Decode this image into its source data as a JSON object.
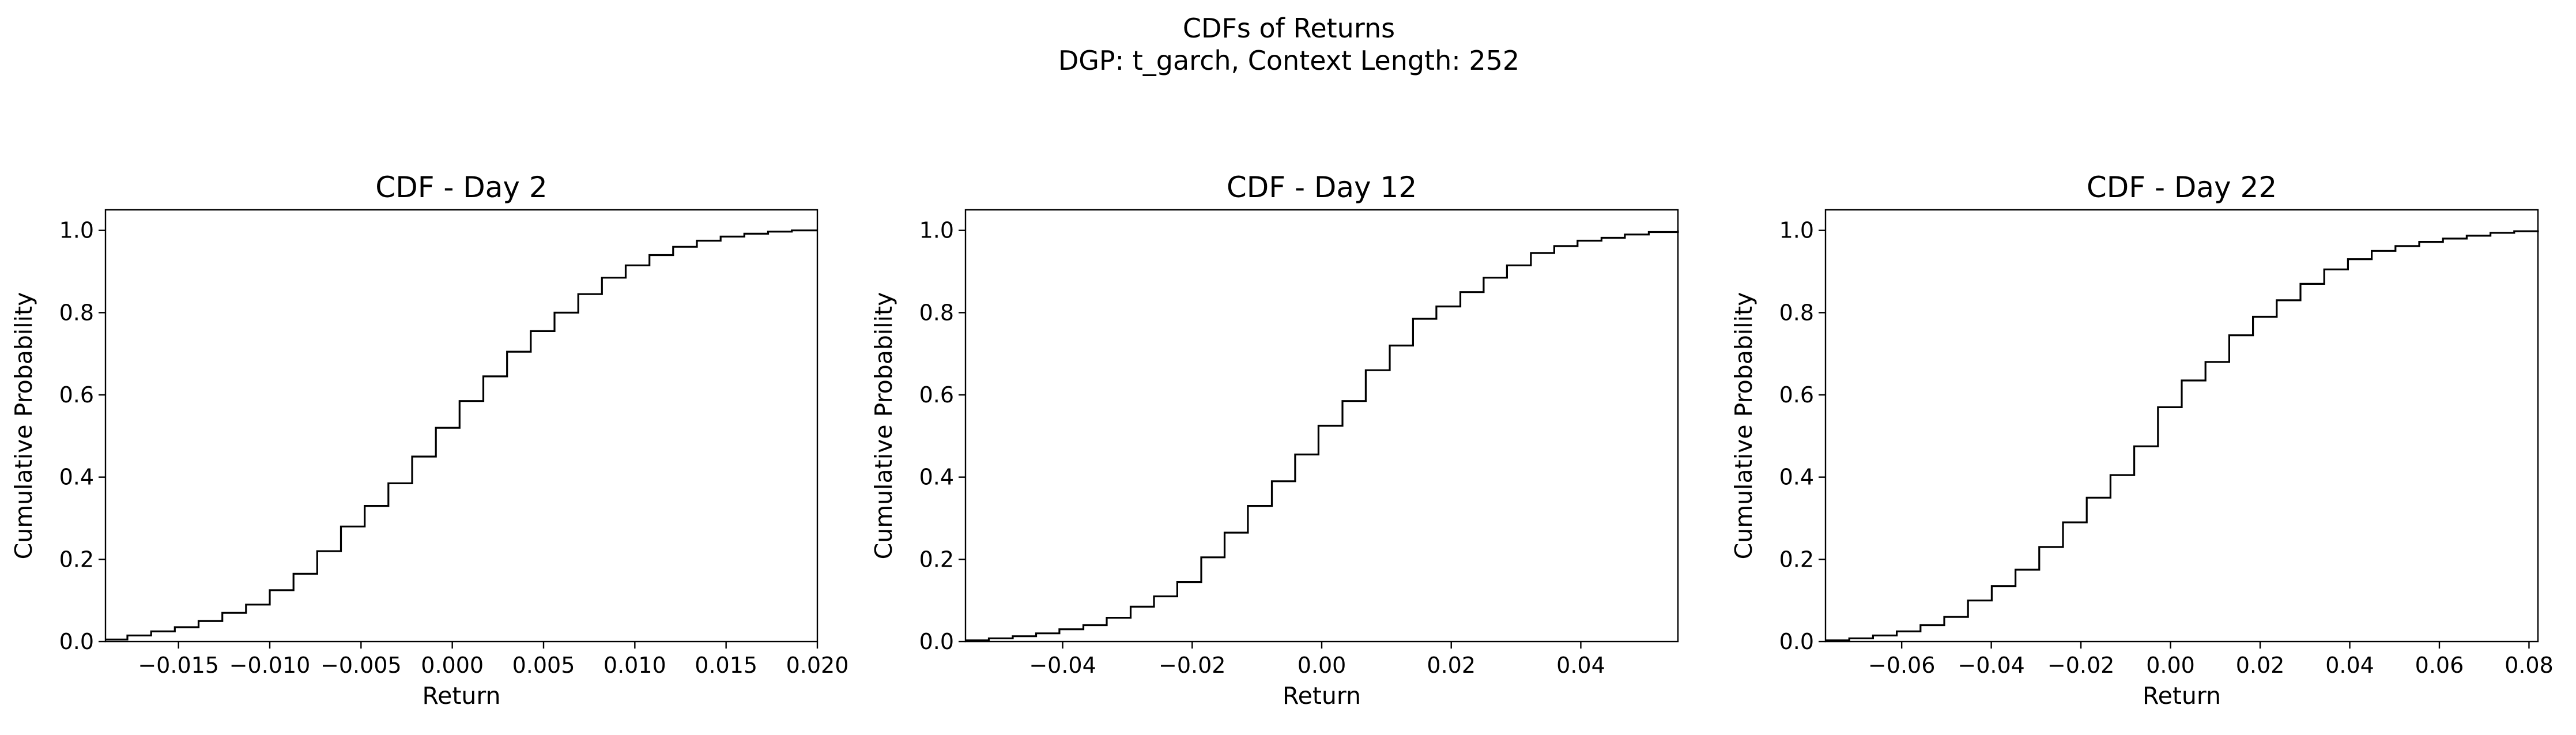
{
  "figure": {
    "title_line1": "CDFs of Returns",
    "title_line2": "DGP: t_garch, Context Length: 252"
  },
  "chart_data": [
    {
      "type": "line",
      "step": "post",
      "title": "CDF - Day 2",
      "xlabel": "Return",
      "ylabel": "Cumulative Probability",
      "xlim": [
        -0.019,
        0.02
      ],
      "ylim": [
        0,
        1.05
      ],
      "xticks": [
        -0.015,
        -0.01,
        -0.005,
        0.0,
        0.005,
        0.01,
        0.015,
        0.02
      ],
      "xtick_labels": [
        "−0.015",
        "−0.010",
        "−0.005",
        "0.000",
        "0.005",
        "0.010",
        "0.015",
        "0.020"
      ],
      "yticks": [
        0.0,
        0.2,
        0.4,
        0.6,
        0.8,
        1.0
      ],
      "ytick_labels": [
        "0.0",
        "0.2",
        "0.4",
        "0.6",
        "0.8",
        "1.0"
      ],
      "line_color": "#000000",
      "x": [
        -0.019,
        -0.0178,
        -0.0165,
        -0.0152,
        -0.0139,
        -0.0126,
        -0.0113,
        -0.01,
        -0.0087,
        -0.0074,
        -0.0061,
        -0.0048,
        -0.0035,
        -0.0022,
        -0.0009,
        0.0004,
        0.0017,
        0.003,
        0.0043,
        0.0056,
        0.0069,
        0.0082,
        0.0095,
        0.0108,
        0.0121,
        0.0134,
        0.0147,
        0.016,
        0.0173,
        0.0186,
        0.02
      ],
      "y": [
        0.005,
        0.015,
        0.025,
        0.035,
        0.05,
        0.07,
        0.09,
        0.125,
        0.165,
        0.22,
        0.28,
        0.33,
        0.385,
        0.45,
        0.52,
        0.585,
        0.645,
        0.705,
        0.755,
        0.8,
        0.845,
        0.885,
        0.915,
        0.94,
        0.96,
        0.975,
        0.985,
        0.992,
        0.997,
        1.0,
        1.0
      ]
    },
    {
      "type": "line",
      "step": "post",
      "title": "CDF - Day 12",
      "xlabel": "Return",
      "ylabel": "Cumulative Probability",
      "xlim": [
        -0.055,
        0.055
      ],
      "ylim": [
        0,
        1.05
      ],
      "xticks": [
        -0.04,
        -0.02,
        0.0,
        0.02,
        0.04
      ],
      "xtick_labels": [
        "−0.04",
        "−0.02",
        "0.00",
        "0.02",
        "0.04"
      ],
      "yticks": [
        0.0,
        0.2,
        0.4,
        0.6,
        0.8,
        1.0
      ],
      "ytick_labels": [
        "0.0",
        "0.2",
        "0.4",
        "0.6",
        "0.8",
        "1.0"
      ],
      "line_color": "#000000",
      "x": [
        -0.055,
        -0.0514,
        -0.0477,
        -0.0441,
        -0.0405,
        -0.0368,
        -0.0332,
        -0.0295,
        -0.0259,
        -0.0223,
        -0.0186,
        -0.015,
        -0.0114,
        -0.0077,
        -0.0041,
        -0.0005,
        0.0032,
        0.0068,
        0.0105,
        0.0141,
        0.0177,
        0.0214,
        0.025,
        0.0286,
        0.0323,
        0.0359,
        0.0395,
        0.0432,
        0.0468,
        0.0505,
        0.055
      ],
      "y": [
        0.003,
        0.008,
        0.013,
        0.02,
        0.03,
        0.04,
        0.058,
        0.085,
        0.11,
        0.145,
        0.205,
        0.265,
        0.33,
        0.39,
        0.455,
        0.525,
        0.585,
        0.66,
        0.72,
        0.785,
        0.815,
        0.85,
        0.885,
        0.915,
        0.945,
        0.962,
        0.975,
        0.982,
        0.99,
        0.996,
        1.0
      ]
    },
    {
      "type": "line",
      "step": "post",
      "title": "CDF - Day 22",
      "xlabel": "Return",
      "ylabel": "Cumulative Probability",
      "xlim": [
        -0.077,
        0.082
      ],
      "ylim": [
        0,
        1.05
      ],
      "xticks": [
        -0.06,
        -0.04,
        -0.02,
        0.0,
        0.02,
        0.04,
        0.06,
        0.08
      ],
      "xtick_labels": [
        "−0.06",
        "−0.04",
        "−0.02",
        "0.00",
        "0.02",
        "0.04",
        "0.06",
        "0.08"
      ],
      "yticks": [
        0.0,
        0.2,
        0.4,
        0.6,
        0.8,
        1.0
      ],
      "ytick_labels": [
        "0.0",
        "0.2",
        "0.4",
        "0.6",
        "0.8",
        "1.0"
      ],
      "line_color": "#000000",
      "x": [
        -0.077,
        -0.0717,
        -0.0664,
        -0.0611,
        -0.0558,
        -0.0505,
        -0.0452,
        -0.0399,
        -0.0346,
        -0.0293,
        -0.024,
        -0.0187,
        -0.0134,
        -0.0081,
        -0.0028,
        0.0025,
        0.0078,
        0.0131,
        0.0184,
        0.0237,
        0.029,
        0.0343,
        0.0396,
        0.0449,
        0.0502,
        0.0555,
        0.0608,
        0.0661,
        0.0714,
        0.0767,
        0.082
      ],
      "y": [
        0.003,
        0.008,
        0.015,
        0.025,
        0.04,
        0.06,
        0.1,
        0.135,
        0.175,
        0.23,
        0.29,
        0.35,
        0.405,
        0.475,
        0.57,
        0.635,
        0.68,
        0.745,
        0.79,
        0.83,
        0.87,
        0.905,
        0.93,
        0.95,
        0.962,
        0.972,
        0.98,
        0.987,
        0.994,
        0.998,
        1.0
      ]
    }
  ]
}
